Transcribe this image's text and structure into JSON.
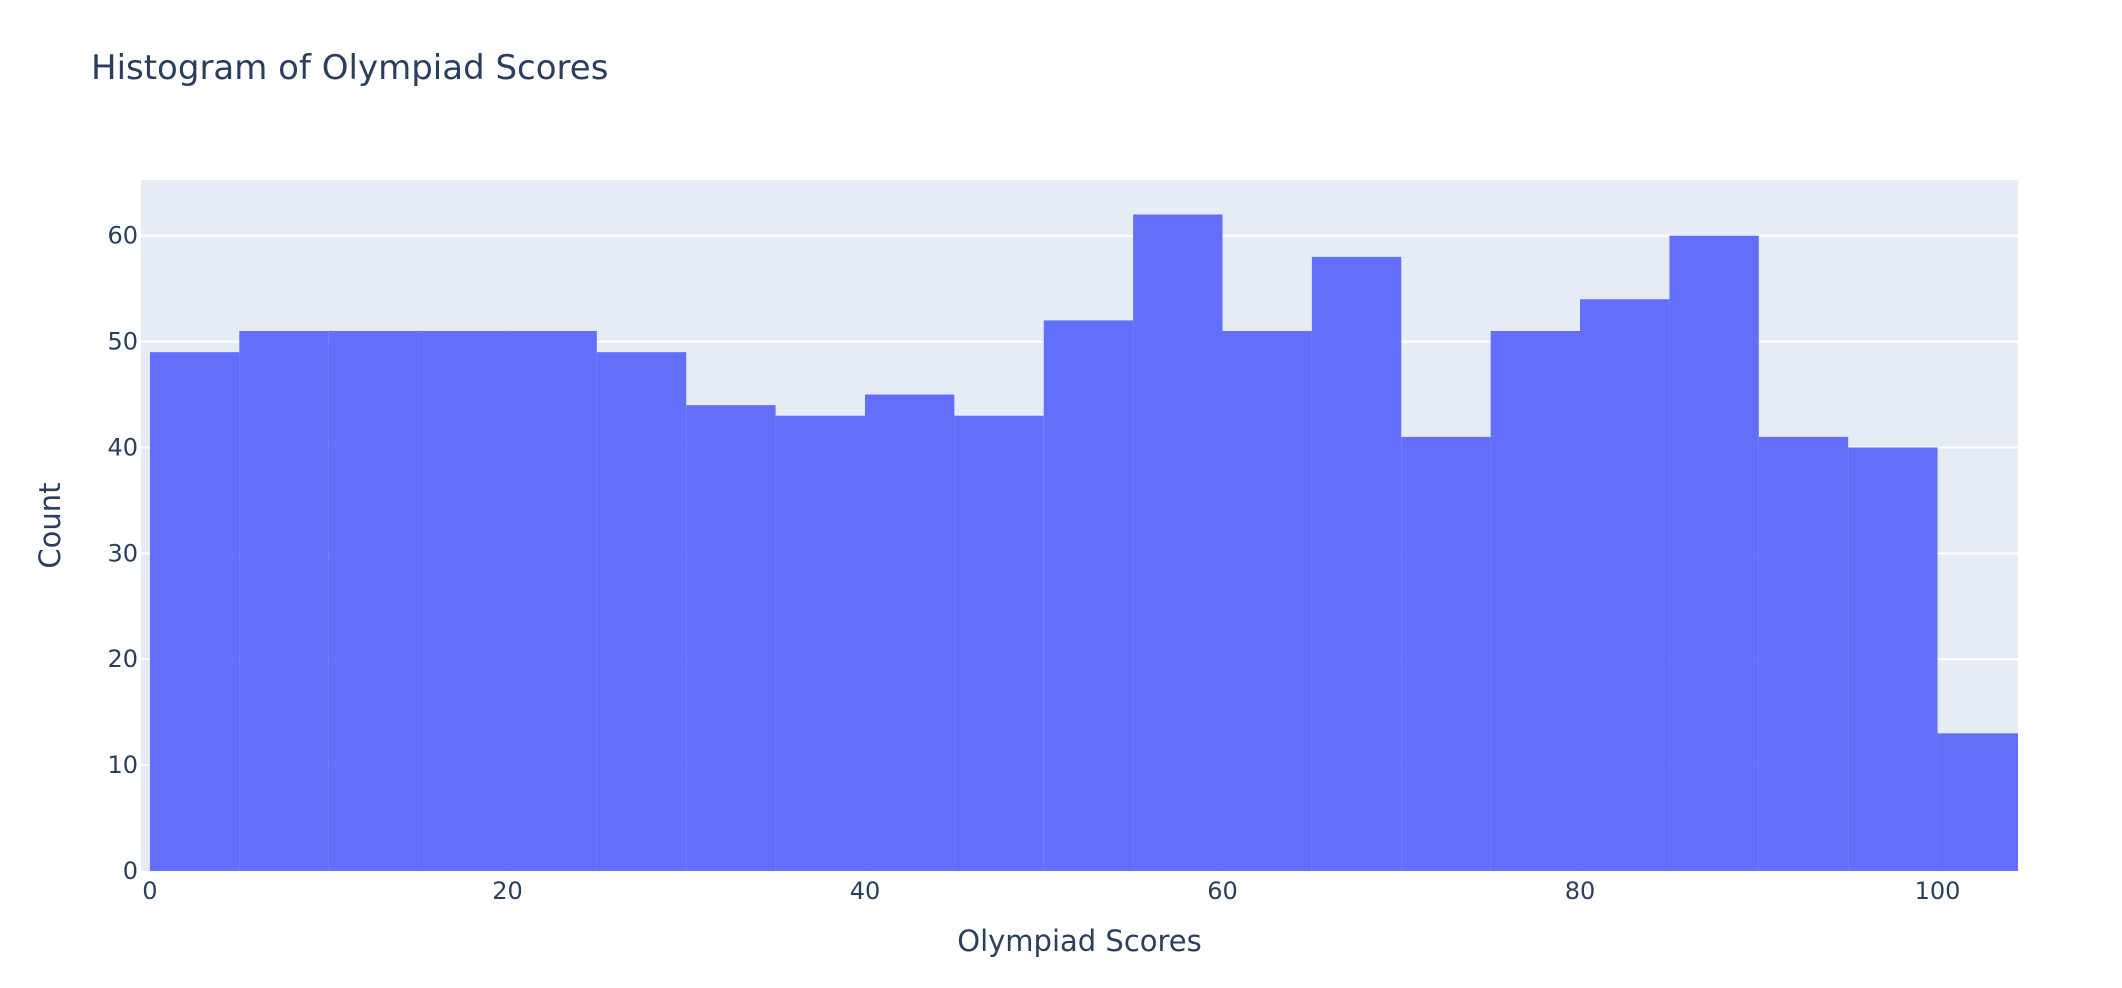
{
  "chart_data": {
    "type": "bar",
    "subtype": "histogram",
    "title": "Histogram of Olympiad Scores",
    "xlabel": "Olympiad Scores",
    "ylabel": "Count",
    "bin_width": 5,
    "x": [
      0,
      5,
      10,
      15,
      20,
      25,
      30,
      35,
      40,
      45,
      50,
      55,
      60,
      65,
      70,
      75,
      80,
      85,
      90,
      95,
      100
    ],
    "values": [
      49,
      51,
      51,
      51,
      51,
      49,
      44,
      43,
      45,
      43,
      52,
      62,
      51,
      58,
      41,
      51,
      54,
      60,
      41,
      40,
      13
    ],
    "xlim": [
      -0.5,
      104.5
    ],
    "ylim": [
      0,
      65.26
    ],
    "xticks": [
      0,
      20,
      40,
      60,
      80,
      100
    ],
    "yticks": [
      0,
      10,
      20,
      30,
      40,
      50,
      60
    ],
    "bar_color": "#636efa",
    "plot_background": "#e5ecf6",
    "grid": true,
    "legend": false
  }
}
